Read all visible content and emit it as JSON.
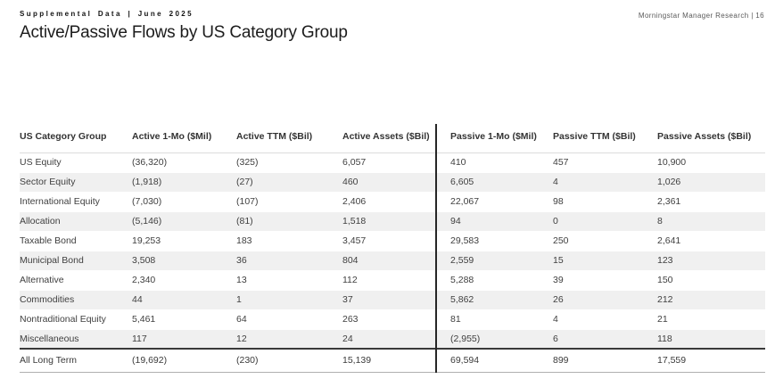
{
  "header": {
    "kicker": "Supplemental Data | June 2025",
    "title": "Active/Passive Flows by US Category Group",
    "right_text": "Morningstar Manager Research | 16"
  },
  "colors": {
    "stripe": "#f0f0f0",
    "divider": "#262626",
    "text": "#404040",
    "total_border": "#3a3a3a"
  },
  "table": {
    "columns": [
      "US Category Group",
      "Active 1-Mo ($Mil)",
      "Active TTM ($Bil)",
      "Active Assets ($Bil)",
      "Passive 1-Mo ($Mil)",
      "Passive TTM ($Bil)",
      "Passive Assets ($Bil)"
    ],
    "rows": [
      {
        "category": "US Equity",
        "values": [
          "(36,320)",
          "(325)",
          "6,057",
          "410",
          "457",
          "10,900"
        ]
      },
      {
        "category": "Sector Equity",
        "values": [
          "(1,918)",
          "(27)",
          "460",
          "6,605",
          "4",
          "1,026"
        ]
      },
      {
        "category": "International Equity",
        "values": [
          "(7,030)",
          "(107)",
          "2,406",
          "22,067",
          "98",
          "2,361"
        ]
      },
      {
        "category": "Allocation",
        "values": [
          "(5,146)",
          "(81)",
          "1,518",
          "94",
          "0",
          "8"
        ]
      },
      {
        "category": "Taxable Bond",
        "values": [
          "19,253",
          "183",
          "3,457",
          "29,583",
          "250",
          "2,641"
        ]
      },
      {
        "category": "Municipal Bond",
        "values": [
          "3,508",
          "36",
          "804",
          "2,559",
          "15",
          "123"
        ]
      },
      {
        "category": "Alternative",
        "values": [
          "2,340",
          "13",
          "112",
          "5,288",
          "39",
          "150"
        ]
      },
      {
        "category": "Commodities",
        "values": [
          "44",
          "1",
          "37",
          "5,862",
          "26",
          "212"
        ]
      },
      {
        "category": "Nontraditional Equity",
        "values": [
          "5,461",
          "64",
          "263",
          "81",
          "4",
          "21"
        ]
      },
      {
        "category": "Miscellaneous",
        "values": [
          "117",
          "12",
          "24",
          "(2,955)",
          "6",
          "118"
        ]
      }
    ],
    "total": {
      "category": "All Long Term",
      "values": [
        "(19,692)",
        "(230)",
        "15,139",
        "69,594",
        "899",
        "17,559"
      ]
    }
  }
}
